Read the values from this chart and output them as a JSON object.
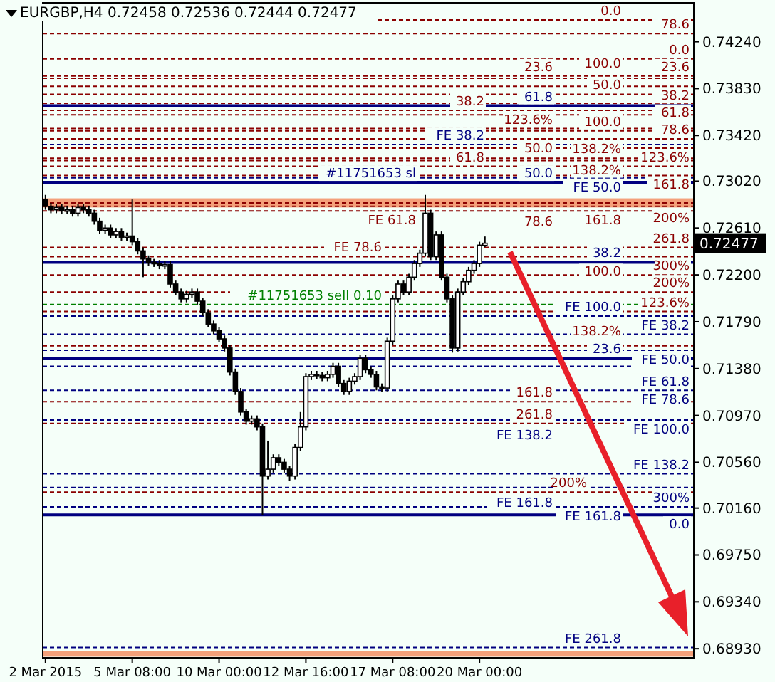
{
  "chart_data": {
    "type": "candlestick",
    "title": "EURGBP,H4 0.72458 0.72536 0.72444 0.72477",
    "categories": [
      "2 Mar 2015",
      null,
      null,
      null,
      null,
      null,
      null,
      null,
      null,
      null,
      null,
      null,
      null,
      null,
      null,
      null,
      "5 Mar 08:00",
      null,
      null,
      null,
      null,
      null,
      null,
      null,
      null,
      null,
      null,
      null,
      null,
      null,
      null,
      null,
      "10 Mar 00:00",
      null,
      null,
      null,
      null,
      null,
      null,
      null,
      null,
      null,
      null,
      null,
      null,
      null,
      null,
      null,
      "12 Mar 16:00",
      null,
      null,
      null,
      null,
      null,
      null,
      null,
      null,
      null,
      null,
      null,
      null,
      null,
      null,
      null,
      "17 Mar 08:00",
      null,
      null,
      null,
      null,
      null,
      null,
      null,
      null,
      null,
      null,
      null,
      null,
      null,
      null,
      null,
      "20 Mar 00:00",
      null,
      null,
      null,
      null,
      null,
      null,
      null,
      null,
      null,
      null,
      null,
      null,
      null,
      null,
      null,
      null,
      null,
      null,
      null,
      null,
      null,
      null,
      null,
      null,
      null,
      null,
      null,
      null,
      null,
      null,
      null,
      null,
      null,
      null,
      null,
      null,
      null,
      null,
      null
    ],
    "ohlc": [
      [
        0.7286,
        0.729,
        0.7277,
        0.728
      ],
      [
        0.728,
        0.7283,
        0.7274,
        0.7277
      ],
      [
        0.7277,
        0.7282,
        0.7274,
        0.7279
      ],
      [
        0.7279,
        0.7282,
        0.7273,
        0.7276
      ],
      [
        0.7276,
        0.728,
        0.7273,
        0.7277
      ],
      [
        0.7277,
        0.728,
        0.7271,
        0.7274
      ],
      [
        0.7274,
        0.7282,
        0.7271,
        0.7279
      ],
      [
        0.7279,
        0.7282,
        0.7274,
        0.7277
      ],
      [
        0.7277,
        0.728,
        0.7271,
        0.7274
      ],
      [
        0.7274,
        0.7277,
        0.7264,
        0.7267
      ],
      [
        0.7267,
        0.727,
        0.7256,
        0.7259
      ],
      [
        0.7259,
        0.7264,
        0.7256,
        0.7261
      ],
      [
        0.7261,
        0.7264,
        0.7252,
        0.7255
      ],
      [
        0.7255,
        0.7261,
        0.7252,
        0.7258
      ],
      [
        0.7258,
        0.7261,
        0.725,
        0.7253
      ],
      [
        0.7253,
        0.7257,
        0.725,
        0.7254
      ],
      [
        0.7254,
        0.7286,
        0.7246,
        0.7249
      ],
      [
        0.7249,
        0.7252,
        0.7238,
        0.7241
      ],
      [
        0.7241,
        0.7244,
        0.7218,
        0.7234
      ],
      [
        0.7234,
        0.7237,
        0.7228,
        0.7231
      ],
      [
        0.7231,
        0.7234,
        0.7227,
        0.723
      ],
      [
        0.723,
        0.7233,
        0.7225,
        0.7228
      ],
      [
        0.7228,
        0.7232,
        0.7225,
        0.7229
      ],
      [
        0.7229,
        0.7232,
        0.7209,
        0.7212
      ],
      [
        0.7212,
        0.7215,
        0.7202,
        0.7205
      ],
      [
        0.7205,
        0.7208,
        0.7196,
        0.7199
      ],
      [
        0.7199,
        0.7206,
        0.7196,
        0.7203
      ],
      [
        0.7203,
        0.7208,
        0.72,
        0.7205
      ],
      [
        0.7205,
        0.7208,
        0.7194,
        0.7197
      ],
      [
        0.7197,
        0.72,
        0.7184,
        0.7187
      ],
      [
        0.7187,
        0.719,
        0.7174,
        0.7177
      ],
      [
        0.7177,
        0.718,
        0.7168,
        0.7171
      ],
      [
        0.7171,
        0.7174,
        0.7161,
        0.7164
      ],
      [
        0.7164,
        0.7167,
        0.7153,
        0.7156
      ],
      [
        0.7156,
        0.7159,
        0.7132,
        0.7135
      ],
      [
        0.7135,
        0.7138,
        0.7115,
        0.7118
      ],
      [
        0.7118,
        0.7121,
        0.7097,
        0.71
      ],
      [
        0.71,
        0.7103,
        0.7089,
        0.7092
      ],
      [
        0.7092,
        0.7097,
        0.7089,
        0.7094
      ],
      [
        0.7094,
        0.7097,
        0.7084,
        0.7087
      ],
      [
        0.7087,
        0.709,
        0.701,
        0.7044
      ],
      [
        0.7044,
        0.7075,
        0.7041,
        0.705
      ],
      [
        0.705,
        0.7063,
        0.7047,
        0.706
      ],
      [
        0.706,
        0.7063,
        0.7053,
        0.7056
      ],
      [
        0.7056,
        0.7059,
        0.7047,
        0.705
      ],
      [
        0.705,
        0.7053,
        0.704,
        0.7044
      ],
      [
        0.7044,
        0.7072,
        0.7041,
        0.7069
      ],
      [
        0.7069,
        0.71,
        0.7066,
        0.7087
      ],
      [
        0.7087,
        0.7134,
        0.7084,
        0.7131
      ],
      [
        0.7131,
        0.7136,
        0.7128,
        0.7133
      ],
      [
        0.7133,
        0.7136,
        0.7129,
        0.7132
      ],
      [
        0.7132,
        0.7135,
        0.7127,
        0.713
      ],
      [
        0.713,
        0.7136,
        0.7127,
        0.7133
      ],
      [
        0.7133,
        0.7143,
        0.713,
        0.714
      ],
      [
        0.714,
        0.7143,
        0.7122,
        0.7125
      ],
      [
        0.7125,
        0.7128,
        0.7115,
        0.7118
      ],
      [
        0.7118,
        0.713,
        0.7115,
        0.7127
      ],
      [
        0.7127,
        0.7134,
        0.7124,
        0.7131
      ],
      [
        0.7131,
        0.715,
        0.7128,
        0.7147
      ],
      [
        0.7147,
        0.715,
        0.7134,
        0.7137
      ],
      [
        0.7137,
        0.714,
        0.713,
        0.7133
      ],
      [
        0.7133,
        0.7136,
        0.7119,
        0.7122
      ],
      [
        0.7122,
        0.7125,
        0.7118,
        0.7121
      ],
      [
        0.7121,
        0.7165,
        0.7118,
        0.7162
      ],
      [
        0.7162,
        0.7202,
        0.7159,
        0.7199
      ],
      [
        0.7199,
        0.7215,
        0.7196,
        0.7212
      ],
      [
        0.7212,
        0.7215,
        0.7202,
        0.7205
      ],
      [
        0.7205,
        0.7221,
        0.7202,
        0.7218
      ],
      [
        0.7218,
        0.7233,
        0.7215,
        0.723
      ],
      [
        0.723,
        0.7242,
        0.7227,
        0.7239
      ],
      [
        0.7239,
        0.729,
        0.7236,
        0.7274
      ],
      [
        0.7274,
        0.7277,
        0.7233,
        0.7236
      ],
      [
        0.7236,
        0.7258,
        0.7233,
        0.7255
      ],
      [
        0.7255,
        0.7258,
        0.7215,
        0.7218
      ],
      [
        0.7218,
        0.7221,
        0.7196,
        0.7199
      ],
      [
        0.7199,
        0.7202,
        0.7152,
        0.7156
      ],
      [
        0.7156,
        0.7208,
        0.7153,
        0.7205
      ],
      [
        0.7205,
        0.7217,
        0.7202,
        0.7214
      ],
      [
        0.7214,
        0.7227,
        0.7211,
        0.7224
      ],
      [
        0.7224,
        0.7233,
        0.7221,
        0.723
      ],
      [
        0.723,
        0.7249,
        0.7227,
        0.7246
      ],
      [
        0.72458,
        0.72536,
        0.72444,
        0.72477
      ],
      null,
      null,
      null,
      null,
      null,
      null,
      null,
      null,
      null,
      null,
      null,
      null,
      null,
      null,
      null,
      null,
      null,
      null,
      null,
      null,
      null,
      null,
      null,
      null,
      null,
      null,
      null,
      null,
      null,
      null,
      null,
      null,
      null,
      null,
      null,
      null,
      null,
      null
    ],
    "ylim": [
      0.6885,
      0.7458
    ],
    "yticks": [
      {
        "value": 0.7424,
        "label": "0.74240"
      },
      {
        "value": 0.7383,
        "label": "0.73830"
      },
      {
        "value": 0.7342,
        "label": "0.73420"
      },
      {
        "value": 0.7302,
        "label": "0.73020"
      },
      {
        "value": 0.7261,
        "label": "0.72610"
      },
      {
        "value": 0.722,
        "label": "0.72200"
      },
      {
        "value": 0.7179,
        "label": "0.71790"
      },
      {
        "value": 0.7138,
        "label": "0.71380"
      },
      {
        "value": 0.7097,
        "label": "0.70970"
      },
      {
        "value": 0.7056,
        "label": "0.70560"
      },
      {
        "value": 0.7016,
        "label": "0.70160"
      },
      {
        "value": 0.6975,
        "label": "0.69750"
      },
      {
        "value": 0.6934,
        "label": "0.69340"
      },
      {
        "value": 0.6893,
        "label": "0.68930"
      }
    ],
    "bands": [
      {
        "axis": "y",
        "from": 0.7279,
        "to": 0.7287,
        "color": "#f4a07a"
      },
      {
        "axis": "y",
        "from": 0.6886,
        "to": 0.6891,
        "color": "#f4a07a"
      }
    ],
    "annotations": [
      "0.72477",
      {
        "text": "0.0",
        "y": 0.7409
      },
      {
        "text": "23.6",
        "y": 0.7394
      },
      {
        "text": "38.2",
        "y": 0.7385
      },
      {
        "text": "50.0",
        "y": 0.7378
      },
      {
        "text": "61.8",
        "y": 0.737
      },
      {
        "text": "78.6",
        "y": 0.736
      },
      {
        "text": "100.0",
        "y": 0.7346
      },
      {
        "text": "123.6%",
        "y": 0.7331
      },
      {
        "text": "138.2%",
        "y": 0.7322
      },
      {
        "text": "161.8",
        "y": 0.7307
      },
      {
        "text": "200%",
        "y": 0.7283
      },
      {
        "text": "261.8",
        "y": 0.7244
      },
      {
        "text": "300%",
        "y": 0.722
      },
      {
        "text": "FE 38.2",
        "y": 0.7168
      },
      {
        "text": "FE 50.0",
        "y": 0.7154
      },
      {
        "text": "FE 61.8",
        "y": 0.714
      },
      {
        "text": "FE 78.6",
        "y": 0.7119
      },
      {
        "text": "FE 100.0",
        "y": 0.7093
      },
      {
        "text": "FE 138.2",
        "y": 0.7046
      },
      {
        "text": "FE 161.8",
        "y": 0.7017
      },
      {
        "text": "FE 261.8",
        "y": 0.6894
      },
      {
        "text": "78.6",
        "y": 0.7431
      },
      {
        "text": "100.0",
        "y": 0.7392
      },
      {
        "text": "123.6%",
        "y": 0.7348
      },
      {
        "text": "138.2%",
        "y": 0.732
      },
      {
        "text": "161.8",
        "y": 0.7276
      },
      {
        "text": "200%",
        "y": 0.7205
      },
      {
        "text": "261.8",
        "y": 0.709
      },
      {
        "text": "300%",
        "y": 0.7017
      },
      {
        "text": "61.8",
        "y": 0.7368
      },
      {
        "text": "50.0",
        "y": 0.7301
      },
      {
        "text": "38.2",
        "y": 0.7231
      },
      {
        "text": "23.6",
        "y": 0.7147
      },
      {
        "text": "0.0",
        "y": 0.701
      },
      {
        "text": "0.0",
        "y": 0.7443
      },
      {
        "text": "23.6",
        "y": 0.7394
      },
      {
        "text": "38.2",
        "y": 0.7364
      },
      {
        "text": "50.0",
        "y": 0.7339
      },
      {
        "text": "61.8",
        "y": 0.7315
      },
      {
        "text": "78.6",
        "y": 0.728
      },
      {
        "text": "100.0",
        "y": 0.7236
      },
      {
        "text": "123.6%",
        "y": 0.7188
      },
      {
        "text": "138.2%",
        "y": 0.7158
      },
      {
        "text": "161.8",
        "y": 0.7109
      },
      {
        "text": "200%",
        "y": 0.703
      },
      {
        "text": "FE 38.2",
        "y": 0.7334
      },
      {
        "text": "FE 50.0",
        "y": 0.7305
      },
      {
        "text": "FE 61.8",
        "y": 0.7276
      },
      {
        "text": "FE 78.6",
        "y": 0.7236
      },
      {
        "text": "FE 100.0",
        "y": 0.7184
      },
      {
        "text": "FE 138.2",
        "y": 0.7093
      },
      {
        "text": "FE 161.8",
        "y": 0.7034
      },
      {
        "text": "#11751653 sl",
        "y": 0.7301
      },
      {
        "text": "#11751653 sell 0.10",
        "y": 0.7194
      }
    ],
    "ref_lines": [
      {
        "axis": "y",
        "value": 0.7409,
        "color": "#8b0000",
        "line_style": "dashed"
      },
      {
        "axis": "y",
        "value": 0.7394,
        "color": "#8b0000",
        "line_style": "dashed"
      },
      {
        "axis": "y",
        "value": 0.7385,
        "color": "#8b0000",
        "line_style": "dashed"
      },
      {
        "axis": "y",
        "value": 0.7378,
        "color": "#8b0000",
        "line_style": "dashed"
      },
      {
        "axis": "y",
        "value": 0.737,
        "color": "#8b0000",
        "line_style": "dashed"
      },
      {
        "axis": "y",
        "value": 0.736,
        "color": "#8b0000",
        "line_style": "dashed"
      },
      {
        "axis": "y",
        "value": 0.7346,
        "color": "#8b0000",
        "line_style": "dashed"
      },
      {
        "axis": "y",
        "value": 0.7331,
        "color": "#8b0000",
        "line_style": "dashed"
      },
      {
        "axis": "y",
        "value": 0.7322,
        "color": "#8b0000",
        "line_style": "dashed"
      },
      {
        "axis": "y",
        "value": 0.7307,
        "color": "#8b0000",
        "line_style": "dashed"
      },
      {
        "axis": "y",
        "value": 0.7283,
        "color": "#8b0000",
        "line_style": "dashed"
      },
      {
        "axis": "y",
        "value": 0.7244,
        "color": "#8b0000",
        "line_style": "dashed"
      },
      {
        "axis": "y",
        "value": 0.722,
        "color": "#8b0000",
        "line_style": "dashed"
      },
      {
        "axis": "y",
        "value": 0.7168,
        "color": "#000080",
        "line_style": "dashed"
      },
      {
        "axis": "y",
        "value": 0.7154,
        "color": "#000080",
        "line_style": "dashed"
      },
      {
        "axis": "y",
        "value": 0.714,
        "color": "#000080",
        "line_style": "dashed"
      },
      {
        "axis": "y",
        "value": 0.7119,
        "color": "#000080",
        "line_style": "dashed"
      },
      {
        "axis": "y",
        "value": 0.7093,
        "color": "#000080",
        "line_style": "dashed"
      },
      {
        "axis": "y",
        "value": 0.7046,
        "color": "#000080",
        "line_style": "dashed"
      },
      {
        "axis": "y",
        "value": 0.7017,
        "color": "#000080",
        "line_style": "dashed"
      },
      {
        "axis": "y",
        "value": 0.6894,
        "color": "#000080",
        "line_style": "dashed"
      },
      {
        "axis": "y",
        "value": 0.7431,
        "color": "#8b0000",
        "line_style": "dashed"
      },
      {
        "axis": "y",
        "value": 0.7392,
        "color": "#8b0000",
        "line_style": "dashed"
      },
      {
        "axis": "y",
        "value": 0.7348,
        "color": "#8b0000",
        "line_style": "dashed"
      },
      {
        "axis": "y",
        "value": 0.732,
        "color": "#8b0000",
        "line_style": "dashed"
      },
      {
        "axis": "y",
        "value": 0.7276,
        "color": "#8b0000",
        "line_style": "dashed"
      },
      {
        "axis": "y",
        "value": 0.7205,
        "color": "#8b0000",
        "line_style": "dashed"
      },
      {
        "axis": "y",
        "value": 0.709,
        "color": "#8b0000",
        "line_style": "dashed"
      },
      {
        "axis": "y",
        "value": 0.7368,
        "color": "#000080",
        "line_style": "solid"
      },
      {
        "axis": "y",
        "value": 0.7301,
        "color": "#000080",
        "line_style": "solid"
      },
      {
        "axis": "y",
        "value": 0.7231,
        "color": "#000080",
        "line_style": "solid"
      },
      {
        "axis": "y",
        "value": 0.7147,
        "color": "#000080",
        "line_style": "solid"
      },
      {
        "axis": "y",
        "value": 0.701,
        "color": "#000080",
        "line_style": "solid"
      },
      {
        "axis": "y",
        "value": 0.7443,
        "color": "#8b0000",
        "line_style": "dashed"
      },
      {
        "axis": "y",
        "value": 0.7364,
        "color": "#8b0000",
        "line_style": "dashed"
      },
      {
        "axis": "y",
        "value": 0.7339,
        "color": "#8b0000",
        "line_style": "dashed"
      },
      {
        "axis": "y",
        "value": 0.7315,
        "color": "#8b0000",
        "line_style": "dashed"
      },
      {
        "axis": "y",
        "value": 0.728,
        "color": "#8b0000",
        "line_style": "dashed"
      },
      {
        "axis": "y",
        "value": 0.7236,
        "color": "#8b0000",
        "line_style": "dashed"
      },
      {
        "axis": "y",
        "value": 0.7188,
        "color": "#8b0000",
        "line_style": "dashed"
      },
      {
        "axis": "y",
        "value": 0.7158,
        "color": "#8b0000",
        "line_style": "dashed"
      },
      {
        "axis": "y",
        "value": 0.7109,
        "color": "#8b0000",
        "line_style": "dashed"
      },
      {
        "axis": "y",
        "value": 0.703,
        "color": "#8b0000",
        "line_style": "dashed"
      },
      {
        "axis": "y",
        "value": 0.7334,
        "color": "#000080",
        "line_style": "dashed"
      },
      {
        "axis": "y",
        "value": 0.7305,
        "color": "#000080",
        "line_style": "dashed"
      },
      {
        "axis": "y",
        "value": 0.7184,
        "color": "#000080",
        "line_style": "dashed"
      },
      {
        "axis": "y",
        "value": 0.7034,
        "color": "#000080",
        "line_style": "dashed"
      },
      {
        "axis": "y",
        "value": 0.7194,
        "color": "#008000",
        "line_style": "dashed"
      }
    ]
  }
}
